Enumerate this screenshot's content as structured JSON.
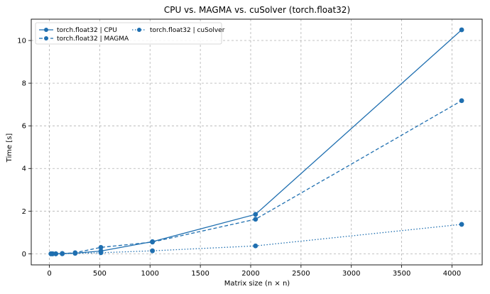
{
  "chart_data": {
    "type": "line",
    "title": "CPU vs. MAGMA vs. cuSolver (torch.float32)",
    "xlabel": "Matrix size (n × n)",
    "ylabel": "Time [s]",
    "xlim": [
      -180,
      4300
    ],
    "ylim": [
      -0.52,
      11.0
    ],
    "xticks": [
      0,
      500,
      1000,
      1500,
      2000,
      2500,
      3000,
      3500,
      4000
    ],
    "yticks": [
      0,
      2,
      4,
      6,
      8,
      10
    ],
    "grid": true,
    "legend_position": "upper-left",
    "color": "#1f6fb0",
    "x": [
      16,
      32,
      64,
      128,
      256,
      512,
      1024,
      2048,
      4096
    ],
    "series": [
      {
        "name": "torch.float32 | CPU",
        "style": "solid",
        "values": [
          0.0,
          0.0,
          0.0,
          0.01,
          0.03,
          0.13,
          0.57,
          1.85,
          10.5
        ]
      },
      {
        "name": "torch.float32 | MAGMA",
        "style": "dashed",
        "values": [
          0.0,
          0.0,
          0.0,
          0.01,
          0.05,
          0.3,
          0.55,
          1.62,
          7.18
        ]
      },
      {
        "name": "torch.float32 | cuSolver",
        "style": "dotted",
        "values": [
          0.0,
          0.0,
          0.0,
          0.0,
          0.02,
          0.05,
          0.14,
          0.37,
          1.38
        ]
      }
    ]
  }
}
